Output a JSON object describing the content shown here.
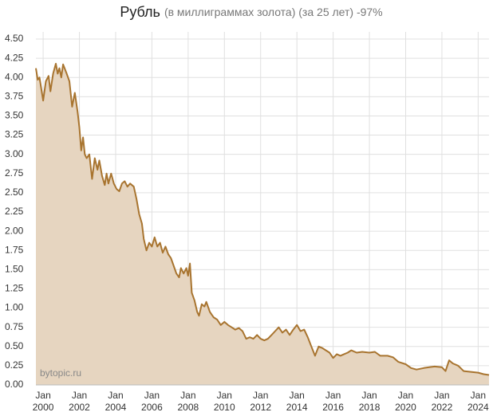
{
  "chart_data": {
    "type": "area",
    "title": "Рубль",
    "subtitle": "(в миллиграммах золота) (за 25 лет) -97%",
    "annotation": "bytopic.ru",
    "color": "#a8742f",
    "fill": "#e6d5c0",
    "grid": true,
    "xlim": [
      1999.6,
      2024.6
    ],
    "ylim": [
      0,
      4.5
    ],
    "xticks": [
      {
        "value": 2000,
        "label": "Jan 2000"
      },
      {
        "value": 2002,
        "label": "Jan 2002"
      },
      {
        "value": 2004,
        "label": "Jan 2004"
      },
      {
        "value": 2006,
        "label": "Jan 2006"
      },
      {
        "value": 2008,
        "label": "Jan 2008"
      },
      {
        "value": 2010,
        "label": "Jan 2010"
      },
      {
        "value": 2012,
        "label": "Jan 2012"
      },
      {
        "value": 2014,
        "label": "Jan 2014"
      },
      {
        "value": 2016,
        "label": "Jan 2016"
      },
      {
        "value": 2018,
        "label": "Jan 2018"
      },
      {
        "value": 2020,
        "label": "Jan 2020"
      },
      {
        "value": 2022,
        "label": "Jan 2022"
      },
      {
        "value": 2024,
        "label": "Jan 2024"
      }
    ],
    "yticks": [
      {
        "value": 0,
        "label": "0.00"
      },
      {
        "value": 0.25,
        "label": "0.25"
      },
      {
        "value": 0.5,
        "label": "0.50"
      },
      {
        "value": 0.75,
        "label": "0.75"
      },
      {
        "value": 1,
        "label": "1.00"
      },
      {
        "value": 1.25,
        "label": "1.25"
      },
      {
        "value": 1.5,
        "label": "1.50"
      },
      {
        "value": 1.75,
        "label": "1.75"
      },
      {
        "value": 2,
        "label": "2.00"
      },
      {
        "value": 2.25,
        "label": "2.25"
      },
      {
        "value": 2.5,
        "label": "2.50"
      },
      {
        "value": 2.75,
        "label": "2.75"
      },
      {
        "value": 3,
        "label": "3.00"
      },
      {
        "value": 3.25,
        "label": "3.25"
      },
      {
        "value": 3.5,
        "label": "3.50"
      },
      {
        "value": 3.75,
        "label": "3.75"
      },
      {
        "value": 4,
        "label": "4.00"
      },
      {
        "value": 4.25,
        "label": "4.25"
      },
      {
        "value": 4.5,
        "label": "4.50"
      }
    ],
    "x": [
      1999.6,
      1999.7,
      1999.8,
      1999.9,
      2000.0,
      2000.15,
      2000.3,
      2000.4,
      2000.55,
      2000.7,
      2000.8,
      2000.9,
      2001.0,
      2001.1,
      2001.3,
      2001.45,
      2001.6,
      2001.75,
      2001.9,
      2002.0,
      2002.1,
      2002.2,
      2002.3,
      2002.4,
      2002.55,
      2002.7,
      2002.85,
      2003.0,
      2003.1,
      2003.25,
      2003.4,
      2003.5,
      2003.6,
      2003.75,
      2003.9,
      2004.05,
      2004.2,
      2004.35,
      2004.5,
      2004.65,
      2004.8,
      2005.0,
      2005.15,
      2005.3,
      2005.45,
      2005.55,
      2005.7,
      2005.85,
      2006.0,
      2006.15,
      2006.3,
      2006.45,
      2006.6,
      2006.75,
      2006.9,
      2007.05,
      2007.2,
      2007.35,
      2007.5,
      2007.6,
      2007.75,
      2007.9,
      2008.0,
      2008.1,
      2008.2,
      2008.35,
      2008.5,
      2008.6,
      2008.75,
      2008.9,
      2009.0,
      2009.2,
      2009.4,
      2009.6,
      2009.8,
      2010.0,
      2010.2,
      2010.4,
      2010.6,
      2010.8,
      2011.0,
      2011.2,
      2011.4,
      2011.6,
      2011.8,
      2012.0,
      2012.2,
      2012.4,
      2012.6,
      2012.8,
      2013.0,
      2013.2,
      2013.4,
      2013.6,
      2013.8,
      2014.0,
      2014.2,
      2014.4,
      2014.6,
      2014.8,
      2015.0,
      2015.2,
      2015.4,
      2015.6,
      2015.8,
      2016.0,
      2016.2,
      2016.4,
      2016.6,
      2016.8,
      2017.0,
      2017.3,
      2017.6,
      2018.0,
      2018.3,
      2018.6,
      2019.0,
      2019.3,
      2019.6,
      2020.0,
      2020.3,
      2020.6,
      2021.0,
      2021.3,
      2021.6,
      2022.0,
      2022.2,
      2022.4,
      2022.6,
      2022.9,
      2023.2,
      2023.6,
      2024.0,
      2024.3,
      2024.6
    ],
    "values": [
      4.12,
      3.97,
      4.0,
      3.85,
      3.7,
      3.95,
      4.02,
      3.82,
      4.05,
      4.18,
      4.05,
      4.12,
      4.0,
      4.17,
      4.05,
      3.95,
      3.62,
      3.8,
      3.55,
      3.35,
      3.05,
      3.22,
      3.0,
      2.95,
      3.0,
      2.68,
      2.95,
      2.8,
      2.92,
      2.72,
      2.6,
      2.75,
      2.62,
      2.75,
      2.62,
      2.55,
      2.52,
      2.62,
      2.65,
      2.58,
      2.62,
      2.58,
      2.42,
      2.22,
      2.1,
      1.9,
      1.75,
      1.85,
      1.8,
      1.92,
      1.8,
      1.85,
      1.72,
      1.8,
      1.7,
      1.65,
      1.55,
      1.45,
      1.4,
      1.52,
      1.45,
      1.52,
      1.42,
      1.58,
      1.2,
      1.1,
      0.95,
      0.9,
      1.05,
      1.02,
      1.08,
      0.95,
      0.88,
      0.85,
      0.78,
      0.82,
      0.78,
      0.75,
      0.72,
      0.74,
      0.7,
      0.6,
      0.62,
      0.6,
      0.65,
      0.6,
      0.58,
      0.6,
      0.65,
      0.7,
      0.75,
      0.68,
      0.72,
      0.65,
      0.72,
      0.78,
      0.7,
      0.72,
      0.62,
      0.5,
      0.38,
      0.5,
      0.48,
      0.45,
      0.42,
      0.35,
      0.4,
      0.38,
      0.4,
      0.42,
      0.45,
      0.42,
      0.43,
      0.42,
      0.43,
      0.38,
      0.38,
      0.36,
      0.3,
      0.27,
      0.22,
      0.2,
      0.22,
      0.23,
      0.24,
      0.23,
      0.18,
      0.32,
      0.28,
      0.25,
      0.18,
      0.17,
      0.16,
      0.14,
      0.13
    ]
  }
}
